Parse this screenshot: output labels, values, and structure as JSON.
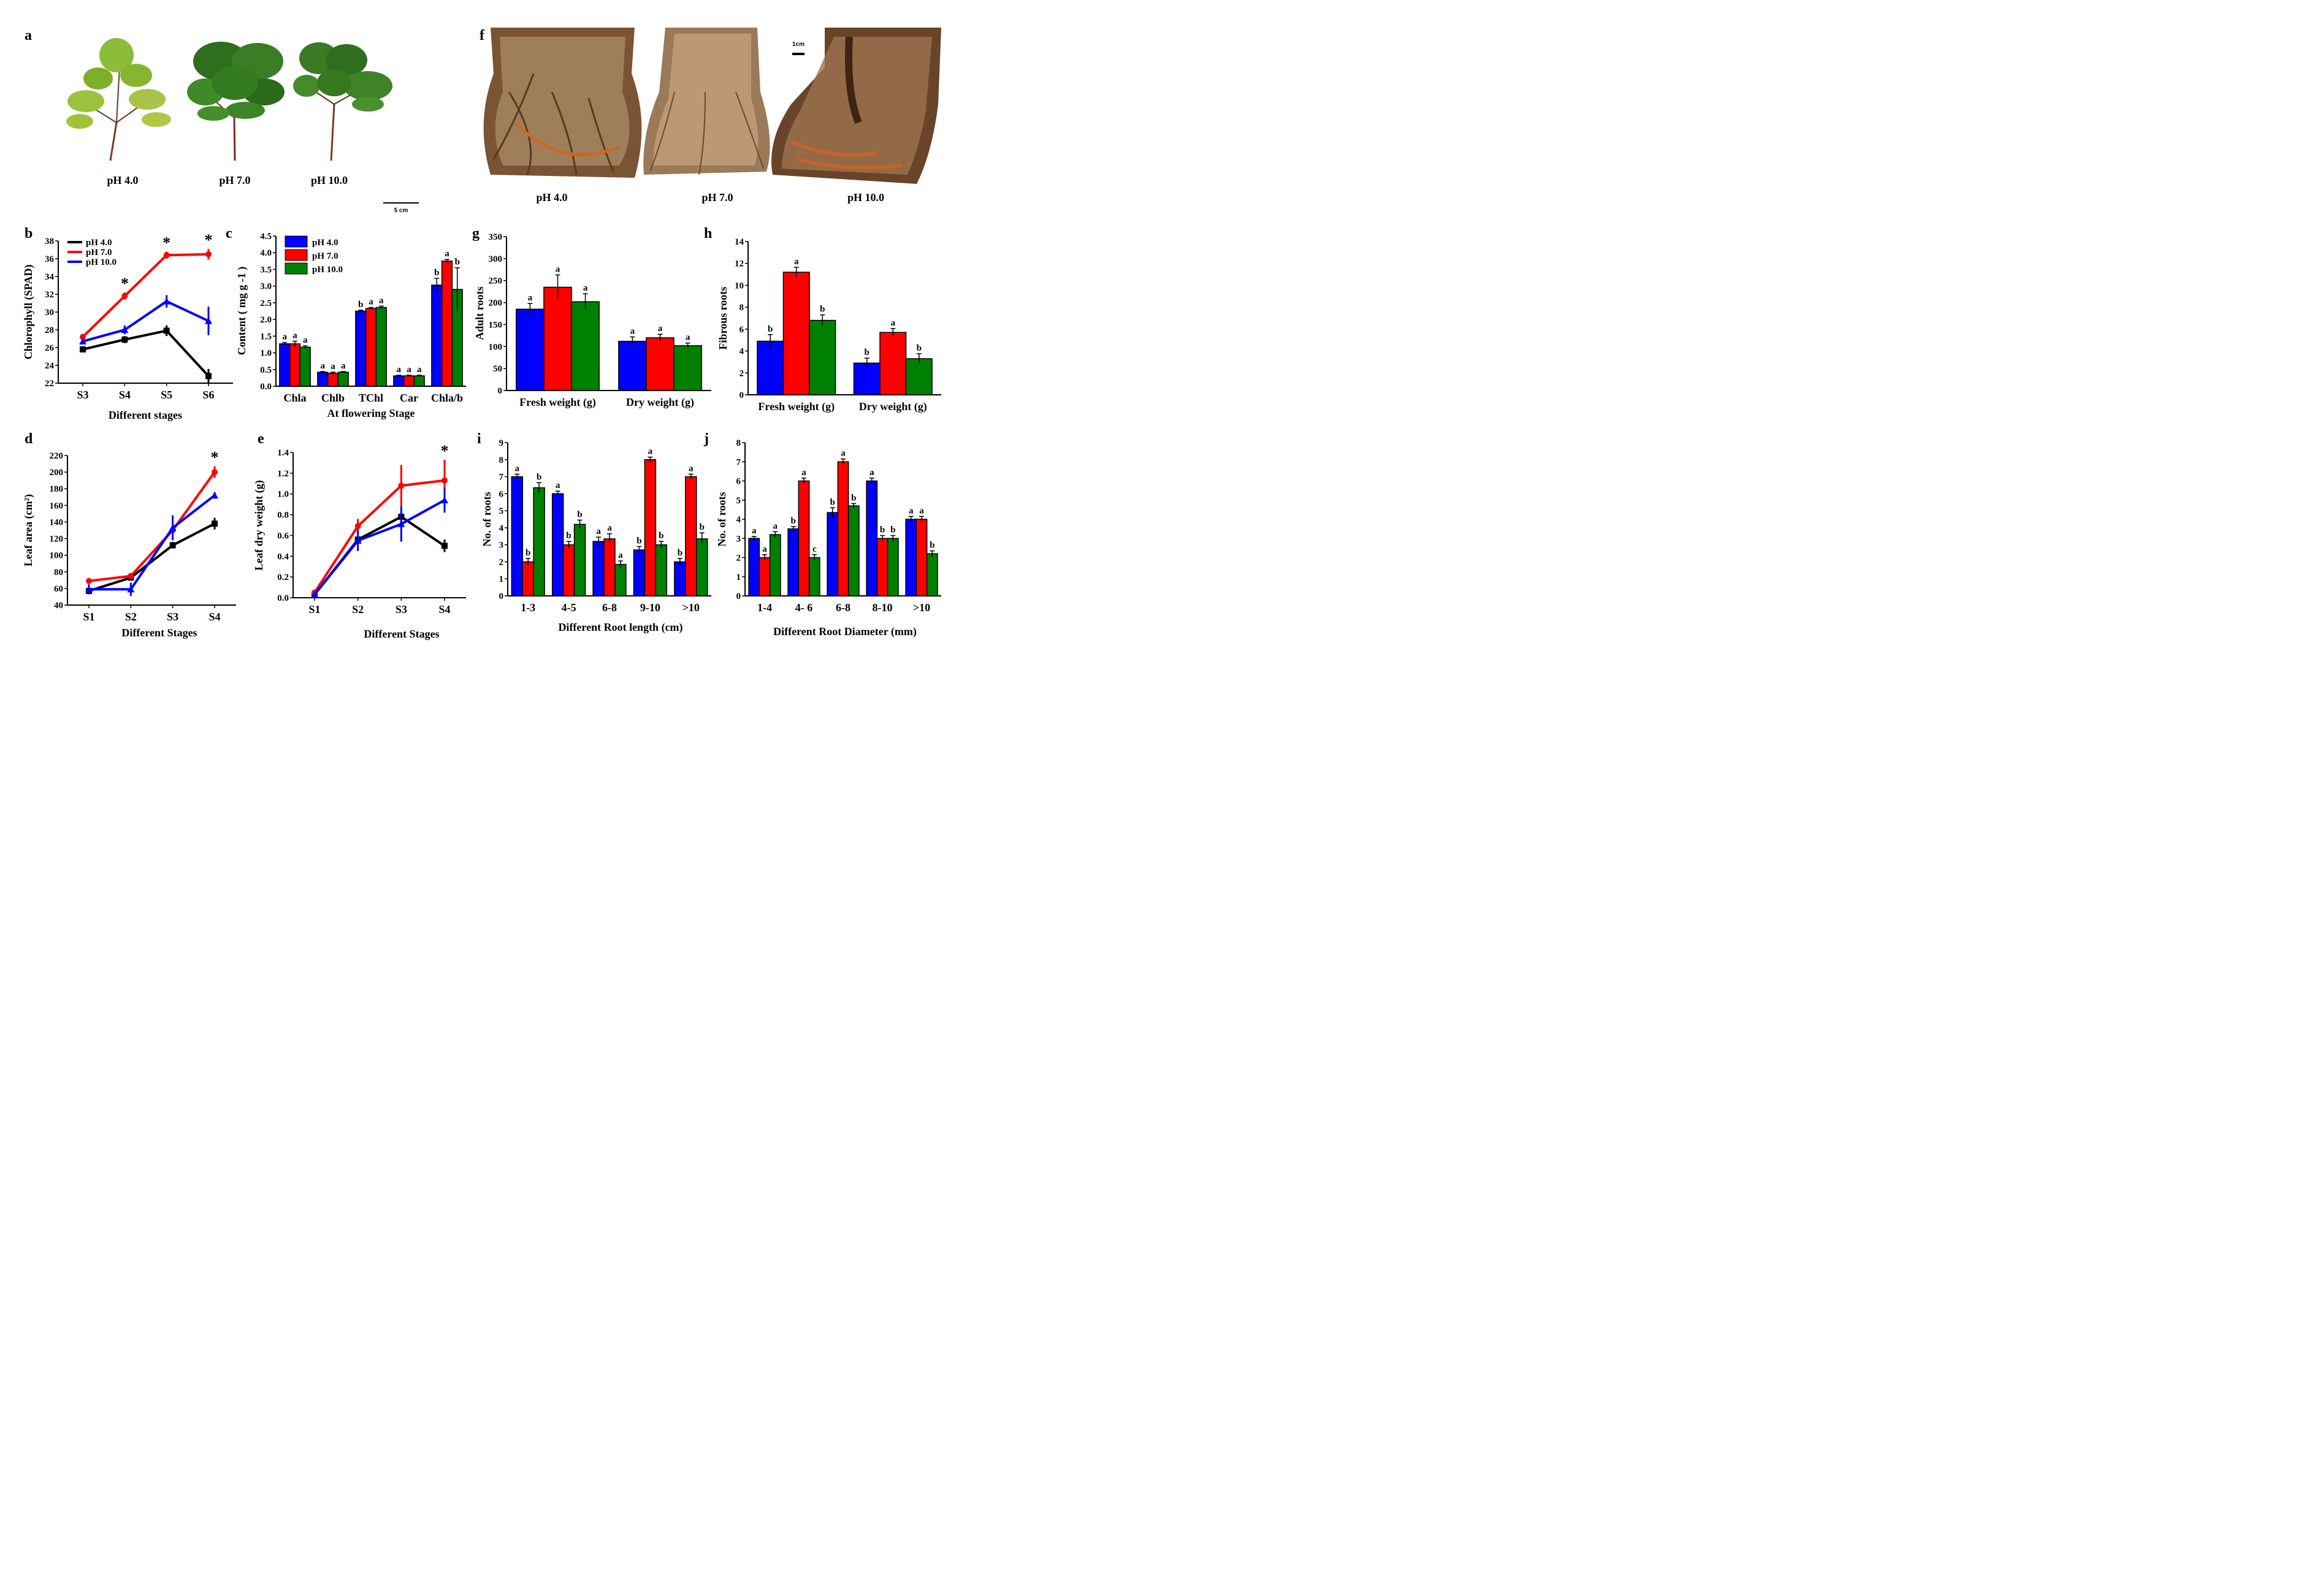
{
  "colors": {
    "ph4_bar": "#0000ff",
    "ph7": "#ff0000",
    "ph10_bar": "#008000",
    "ph4_line": "#000000",
    "ph10_line": "#0000ff",
    "leaf_dark": "#2f6e1e",
    "leaf_light": "#7fae2a",
    "root": "#8a5a32"
  },
  "panel_a": {
    "label": "a",
    "captions": [
      "pH 4.0",
      "pH 7.0",
      "pH 10.0"
    ],
    "scale": "5 cm"
  },
  "panel_f": {
    "label": "f",
    "captions": [
      "pH 4.0",
      "pH 7.0",
      "pH 10.0"
    ],
    "scale": "1cm"
  },
  "chart_data": [
    {
      "id": "b",
      "type": "line",
      "title": "",
      "xlabel": "Different stages",
      "ylabel": "Chlorophyll (SPAD)",
      "categories": [
        "S3",
        "S4",
        "S5",
        "S6"
      ],
      "ylim": [
        22,
        38
      ],
      "yticks": [
        22,
        24,
        26,
        28,
        30,
        32,
        34,
        36,
        38
      ],
      "series": [
        {
          "name": "pH 4.0",
          "values": [
            25.8,
            26.9,
            27.9,
            22.8
          ],
          "errors": [
            0.3,
            0.4,
            0.6,
            0.8
          ]
        },
        {
          "name": "pH 7.0",
          "values": [
            27.2,
            31.8,
            36.4,
            36.5
          ],
          "errors": [
            0.3,
            0.4,
            0.4,
            0.6
          ]
        },
        {
          "name": "pH 10.0",
          "values": [
            26.7,
            28.0,
            31.2,
            29.0
          ],
          "errors": [
            0.3,
            0.5,
            0.7,
            1.6
          ]
        }
      ],
      "annotations": [
        "*",
        "*",
        "*"
      ],
      "annotation_x": [
        "S4",
        "S5",
        "S6"
      ],
      "legend": "top-left"
    },
    {
      "id": "c",
      "type": "bar",
      "xlabel": "At flowering Stage",
      "ylabel": "Content ( mg g -1 )",
      "categories": [
        "Chla",
        "Chlb",
        "TChl",
        "Car",
        "Chla/b"
      ],
      "ylim": [
        0,
        4.5
      ],
      "yticks": [
        "0.0",
        "0.5",
        "1.0",
        "1.5",
        "2.0",
        "2.5",
        "3.0",
        "3.5",
        "4.0",
        "4.5"
      ],
      "series": [
        {
          "name": "pH 4.0",
          "values": [
            1.27,
            0.42,
            2.25,
            0.31,
            3.03
          ],
          "errors": [
            0.04,
            0.02,
            0.03,
            0.02,
            0.2
          ],
          "letters": [
            "a",
            "a",
            "b",
            "a",
            "b"
          ]
        },
        {
          "name": "pH 7.0",
          "values": [
            1.27,
            0.39,
            2.33,
            0.31,
            3.75
          ],
          "errors": [
            0.08,
            0.03,
            0.03,
            0.02,
            0.05
          ],
          "letters": [
            "a",
            "a",
            "a",
            "a",
            "a"
          ]
        },
        {
          "name": "pH 10.0",
          "values": [
            1.17,
            0.42,
            2.36,
            0.31,
            2.9
          ],
          "errors": [
            0.04,
            0.02,
            0.04,
            0.02,
            0.65
          ],
          "letters": [
            "a",
            "a",
            "a",
            "a",
            "b"
          ]
        }
      ],
      "legend": "top-left"
    },
    {
      "id": "g",
      "type": "bar",
      "xlabel": "",
      "ylabel": "Adult roots",
      "categories": [
        "Fresh weight (g)",
        "Dry weight (g)"
      ],
      "ylim": [
        0,
        350
      ],
      "yticks": [
        "0",
        "50",
        "100",
        "150",
        "200",
        "250",
        "300",
        "350"
      ],
      "series": [
        {
          "name": "pH 4.0",
          "values": [
            185,
            112
          ],
          "errors": [
            13,
            10
          ],
          "letters": [
            "a",
            "a"
          ]
        },
        {
          "name": "pH 7.0",
          "values": [
            235,
            120
          ],
          "errors": [
            28,
            8
          ],
          "letters": [
            "a",
            "a"
          ]
        },
        {
          "name": "pH 10.0",
          "values": [
            202,
            102
          ],
          "errors": [
            18,
            6
          ],
          "letters": [
            "a",
            "a"
          ]
        }
      ]
    },
    {
      "id": "h",
      "type": "bar",
      "xlabel": "",
      "ylabel": "Fibrous roots",
      "categories": [
        "Fresh weight (g)",
        "Dry weight (g)"
      ],
      "ylim": [
        0,
        14
      ],
      "yticks": [
        "0",
        "2",
        "4",
        "6",
        "8",
        "10",
        "12",
        "14"
      ],
      "series": [
        {
          "name": "pH 4.0",
          "values": [
            4.9,
            2.9
          ],
          "errors": [
            0.6,
            0.45
          ],
          "letters": [
            "b",
            "b"
          ]
        },
        {
          "name": "pH 7.0",
          "values": [
            11.2,
            5.7
          ],
          "errors": [
            0.45,
            0.35
          ],
          "letters": [
            "a",
            "a"
          ]
        },
        {
          "name": "pH 10.0",
          "values": [
            6.8,
            3.3
          ],
          "errors": [
            0.5,
            0.45
          ],
          "letters": [
            "b",
            "b"
          ]
        }
      ]
    },
    {
      "id": "d",
      "type": "line",
      "xlabel": "Different Stages",
      "ylabel": "Leaf area (cm²)",
      "categories": [
        "S1",
        "S2",
        "S3",
        "S4"
      ],
      "ylim": [
        40,
        220
      ],
      "yticks": [
        40,
        60,
        80,
        100,
        120,
        140,
        160,
        180,
        200,
        220
      ],
      "series": [
        {
          "name": "pH 4.0",
          "values": [
            57,
            73,
            112,
            138
          ],
          "errors": [
            3,
            3,
            4,
            7
          ]
        },
        {
          "name": "pH 7.0",
          "values": [
            69,
            75,
            130,
            200
          ],
          "errors": [
            2,
            3,
            4,
            7
          ]
        },
        {
          "name": "pH 10.0",
          "values": [
            59,
            59,
            133,
            172
          ],
          "errors": [
            6,
            8,
            15,
            4
          ]
        }
      ],
      "annotations": [
        "*"
      ],
      "annotation_x": [
        "S4"
      ]
    },
    {
      "id": "e",
      "type": "line",
      "xlabel": "Different Stages",
      "ylabel": "Leaf dry weight (g)",
      "categories": [
        "S1",
        "S2",
        "S3",
        "S4"
      ],
      "ylim": [
        0,
        1.4
      ],
      "yticks": [
        "0.0",
        "0.2",
        "0.4",
        "0.6",
        "0.8",
        "1.0",
        "1.2",
        "1.4"
      ],
      "series": [
        {
          "name": "pH 4.0",
          "values": [
            0.03,
            0.56,
            0.78,
            0.5
          ],
          "errors": [
            0.01,
            0.04,
            0.06,
            0.06
          ]
        },
        {
          "name": "pH 7.0",
          "values": [
            0.05,
            0.69,
            1.08,
            1.13
          ],
          "errors": [
            0.01,
            0.07,
            0.2,
            0.2
          ]
        },
        {
          "name": "pH 10.0",
          "values": [
            0.03,
            0.55,
            0.71,
            0.94
          ],
          "errors": [
            0.01,
            0.1,
            0.17,
            0.12
          ]
        }
      ],
      "annotations": [
        "*"
      ],
      "annotation_x": [
        "S4"
      ]
    },
    {
      "id": "i",
      "type": "bar",
      "xlabel": "Different Root length (cm)",
      "ylabel": "No. of roots",
      "categories": [
        "1-3",
        "4-5",
        "6-8",
        "9-10",
        ">10"
      ],
      "ylim": [
        0,
        9
      ],
      "yticks": [
        "0",
        "1",
        "2",
        "3",
        "4",
        "5",
        "6",
        "7",
        "8",
        "9"
      ],
      "series": [
        {
          "name": "pH 4.0",
          "values": [
            7.0,
            6.0,
            3.2,
            2.7,
            2.0
          ],
          "errors": [
            0.15,
            0.15,
            0.25,
            0.2,
            0.2
          ],
          "letters": [
            "a",
            "a",
            "a",
            "b",
            "b"
          ]
        },
        {
          "name": "pH 7.0",
          "values": [
            2.0,
            3.0,
            3.35,
            8.0,
            7.0
          ],
          "errors": [
            0.2,
            0.2,
            0.3,
            0.15,
            0.15
          ],
          "letters": [
            "b",
            "b",
            "a",
            "a",
            "a"
          ]
        },
        {
          "name": "pH 10.0",
          "values": [
            6.35,
            4.2,
            1.85,
            3.0,
            3.35
          ],
          "errors": [
            0.3,
            0.25,
            0.2,
            0.2,
            0.35
          ],
          "letters": [
            "b",
            "b",
            "a",
            "b",
            "b"
          ]
        }
      ]
    },
    {
      "id": "j",
      "type": "bar",
      "xlabel": "Different Root Diameter (mm)",
      "ylabel": "No. of roots",
      "categories": [
        "1-4",
        "4- 6",
        "6-8",
        "8-10",
        ">10"
      ],
      "ylim": [
        0,
        8
      ],
      "yticks": [
        "0",
        "1",
        "2",
        "3",
        "4",
        "5",
        "6",
        "7",
        "8"
      ],
      "series": [
        {
          "name": "pH 4.0",
          "values": [
            3.0,
            3.5,
            4.35,
            6.0,
            4.0
          ],
          "errors": [
            0.1,
            0.12,
            0.25,
            0.15,
            0.15
          ],
          "letters": [
            "a",
            "b",
            "b",
            "a",
            "a"
          ]
        },
        {
          "name": "pH 7.0",
          "values": [
            2.0,
            6.0,
            7.0,
            3.0,
            4.0
          ],
          "errors": [
            0.15,
            0.15,
            0.15,
            0.15,
            0.15
          ],
          "letters": [
            "a",
            "a",
            "a",
            "b",
            "a"
          ]
        },
        {
          "name": "pH 10.0",
          "values": [
            3.2,
            2.0,
            4.7,
            3.0,
            2.2
          ],
          "errors": [
            0.15,
            0.15,
            0.12,
            0.15,
            0.15
          ],
          "letters": [
            "a",
            "c",
            "b",
            "b",
            "b"
          ]
        }
      ]
    }
  ]
}
